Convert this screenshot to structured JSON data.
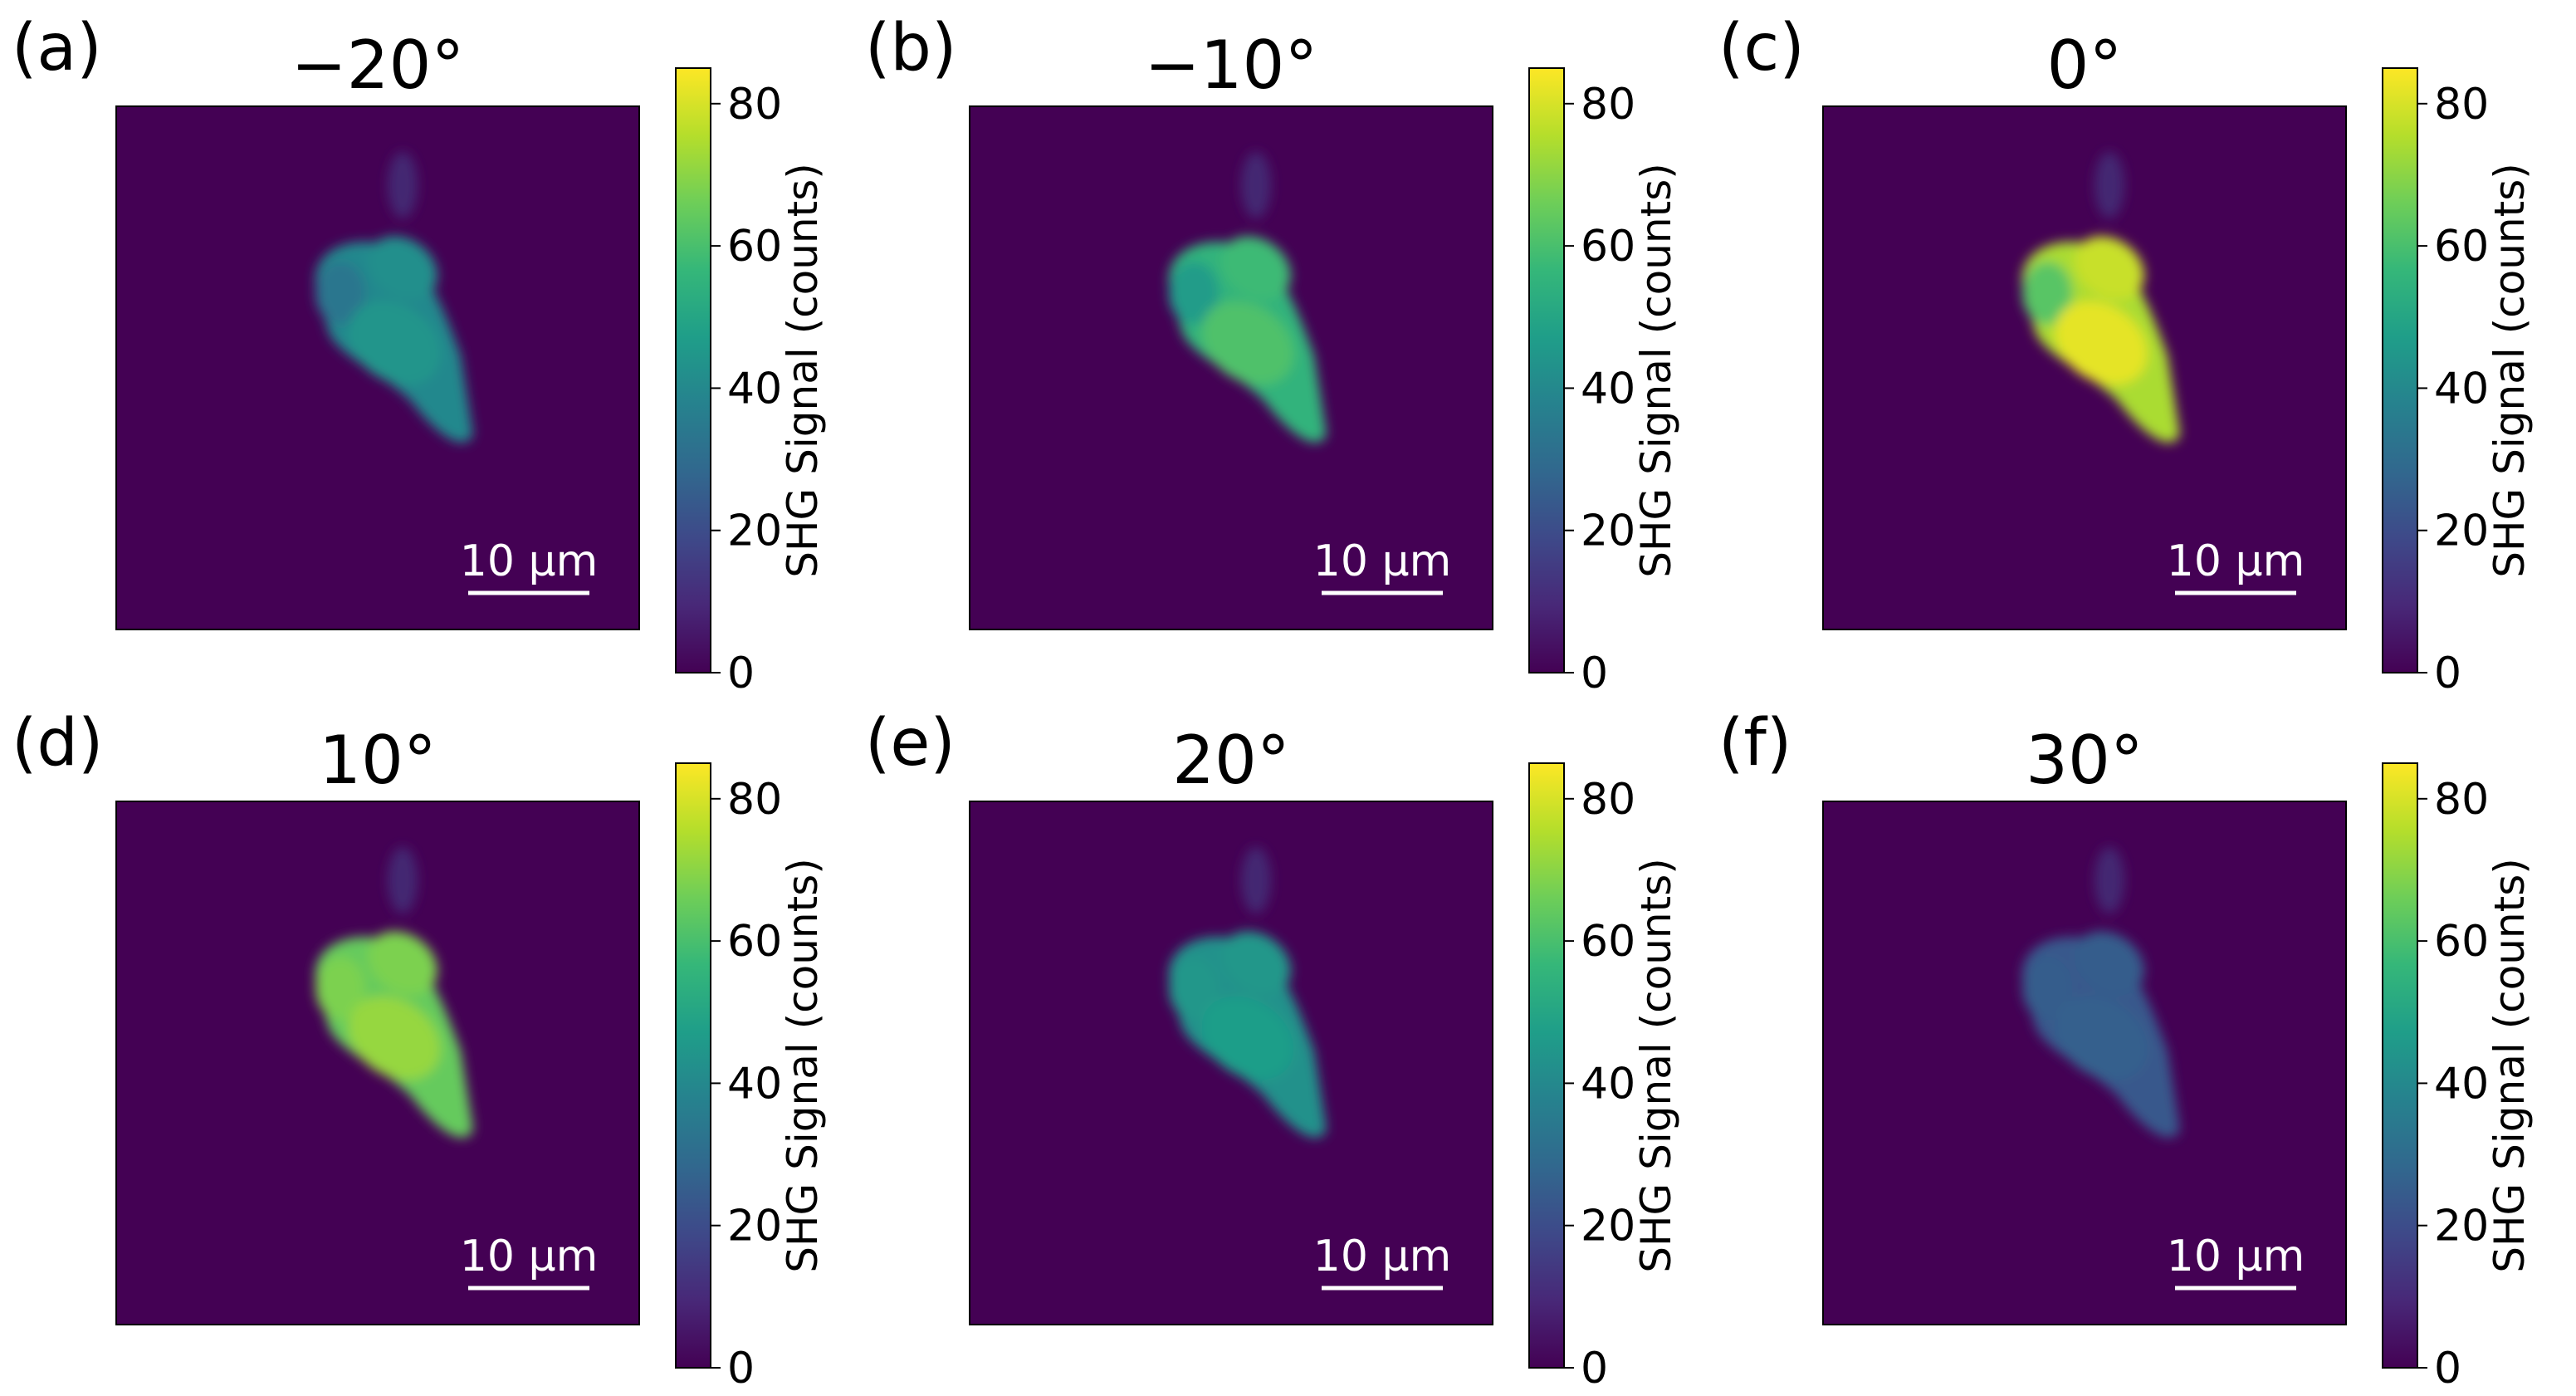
{
  "chart_data": [
    {
      "type": "heatmap",
      "panel_label": "(a)",
      "title": "−20°",
      "peak_value": 42,
      "scalebar": "10 μm",
      "colorbar": {
        "label": "SHG Signal (counts)",
        "range": [
          0,
          85
        ],
        "ticks": [
          "0",
          "20",
          "40",
          "60",
          "80"
        ]
      }
    },
    {
      "type": "heatmap",
      "panel_label": "(b)",
      "title": "−10°",
      "peak_value": 58,
      "scalebar": "10 μm",
      "colorbar": {
        "label": "SHG Signal (counts)",
        "range": [
          0,
          85
        ],
        "ticks": [
          "0",
          "20",
          "40",
          "60",
          "80"
        ]
      }
    },
    {
      "type": "heatmap",
      "panel_label": "(c)",
      "title": "0°",
      "peak_value": 78,
      "scalebar": "10 μm",
      "colorbar": {
        "label": "SHG Signal (counts)",
        "range": [
          0,
          85
        ],
        "ticks": [
          "0",
          "20",
          "40",
          "60",
          "80"
        ]
      }
    },
    {
      "type": "heatmap",
      "panel_label": "(d)",
      "title": "10°",
      "peak_value": 68,
      "scalebar": "10 μm",
      "colorbar": {
        "label": "SHG Signal (counts)",
        "range": [
          0,
          85
        ],
        "ticks": [
          "0",
          "20",
          "40",
          "60",
          "80"
        ]
      }
    },
    {
      "type": "heatmap",
      "panel_label": "(e)",
      "title": "20°",
      "peak_value": 45,
      "scalebar": "10 μm",
      "colorbar": {
        "label": "SHG Signal (counts)",
        "range": [
          0,
          85
        ],
        "ticks": [
          "0",
          "20",
          "40",
          "60",
          "80"
        ]
      }
    },
    {
      "type": "heatmap",
      "panel_label": "(f)",
      "title": "30°",
      "peak_value": 25,
      "scalebar": "10 μm",
      "colorbar": {
        "label": "SHG Signal (counts)",
        "range": [
          0,
          85
        ],
        "ticks": [
          "0",
          "20",
          "40",
          "60",
          "80"
        ]
      }
    }
  ],
  "colormap": {
    "name": "viridis",
    "stops": [
      "#440154",
      "#482878",
      "#3e4989",
      "#31688e",
      "#26828e",
      "#1f9e89",
      "#35b779",
      "#6ece58",
      "#b5de2b",
      "#fde725"
    ]
  }
}
